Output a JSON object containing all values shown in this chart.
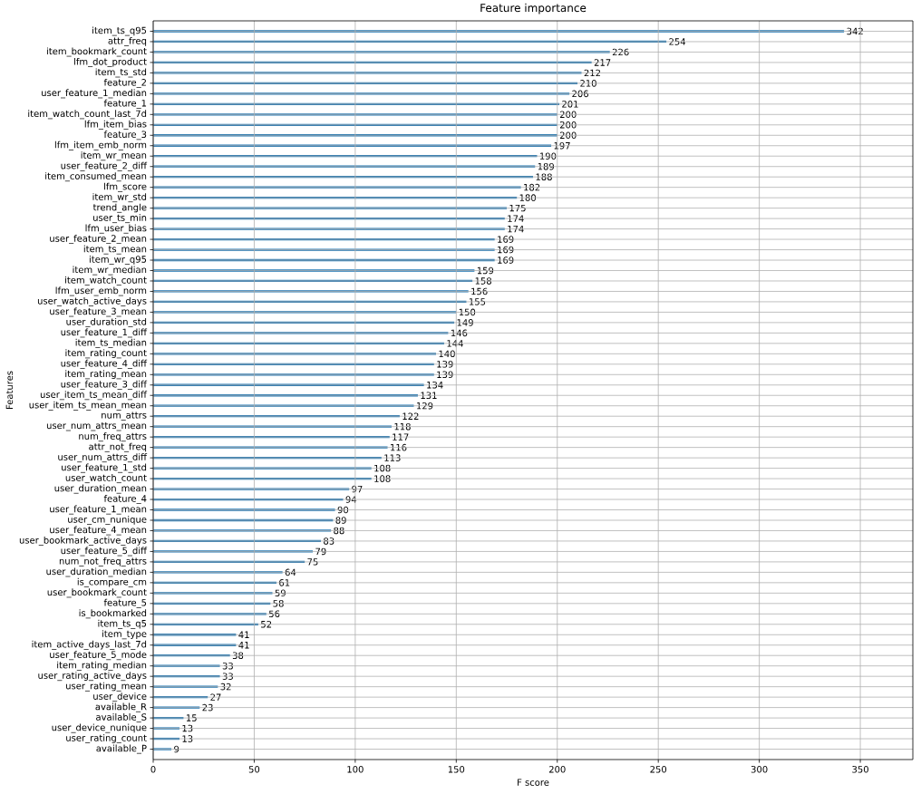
{
  "chart_data": {
    "type": "bar",
    "orientation": "horizontal",
    "title": "Feature importance",
    "xlabel": "F score",
    "ylabel": "Features",
    "categories": [
      "item_ts_q95",
      "attr_freq",
      "item_bookmark_count",
      "lfm_dot_product",
      "item_ts_std",
      "feature_2",
      "user_feature_1_median",
      "feature_1",
      "item_watch_count_last_7d",
      "lfm_item_bias",
      "feature_3",
      "lfm_item_emb_norm",
      "item_wr_mean",
      "user_feature_2_diff",
      "item_consumed_mean",
      "lfm_score",
      "item_wr_std",
      "trend_angle",
      "user_ts_min",
      "lfm_user_bias",
      "user_feature_2_mean",
      "item_ts_mean",
      "item_wr_q95",
      "item_wr_median",
      "item_watch_count",
      "lfm_user_emb_norm",
      "user_watch_active_days",
      "user_feature_3_mean",
      "user_duration_std",
      "user_feature_1_diff",
      "item_ts_median",
      "item_rating_count",
      "user_feature_4_diff",
      "item_rating_mean",
      "user_feature_3_diff",
      "user_item_ts_mean_diff",
      "user_item_ts_mean_mean",
      "num_attrs",
      "user_num_attrs_mean",
      "num_freq_attrs",
      "attr_not_freq",
      "user_num_attrs_diff",
      "user_feature_1_std",
      "user_watch_count",
      "user_duration_mean",
      "feature_4",
      "user_feature_1_mean",
      "user_cm_nunique",
      "user_feature_4_mean",
      "user_bookmark_active_days",
      "user_feature_5_diff",
      "num_not_freq_attrs",
      "user_duration_median",
      "is_compare_cm",
      "user_bookmark_count",
      "feature_5",
      "is_bookmarked",
      "item_ts_q5",
      "item_type",
      "item_active_days_last_7d",
      "user_feature_5_mode",
      "item_rating_median",
      "user_rating_active_days",
      "user_rating_mean",
      "user_device",
      "available_R",
      "available_S",
      "user_device_nunique",
      "user_rating_count",
      "available_P"
    ],
    "values": [
      342,
      254,
      226,
      217,
      212,
      210,
      206,
      201,
      200,
      200,
      200,
      197,
      190,
      189,
      188,
      182,
      180,
      175,
      174,
      174,
      169,
      169,
      169,
      159,
      158,
      156,
      155,
      150,
      149,
      146,
      144,
      140,
      139,
      139,
      134,
      131,
      129,
      122,
      118,
      117,
      116,
      113,
      108,
      108,
      97,
      94,
      90,
      89,
      88,
      83,
      79,
      75,
      64,
      61,
      59,
      58,
      56,
      52,
      41,
      41,
      38,
      33,
      33,
      32,
      27,
      23,
      15,
      13,
      13,
      9
    ],
    "color": "#1f77b4",
    "data_labels": true,
    "grid": true,
    "xlim": [
      0,
      376
    ],
    "xticks": [
      0,
      50,
      100,
      150,
      200,
      250,
      300,
      350
    ]
  }
}
